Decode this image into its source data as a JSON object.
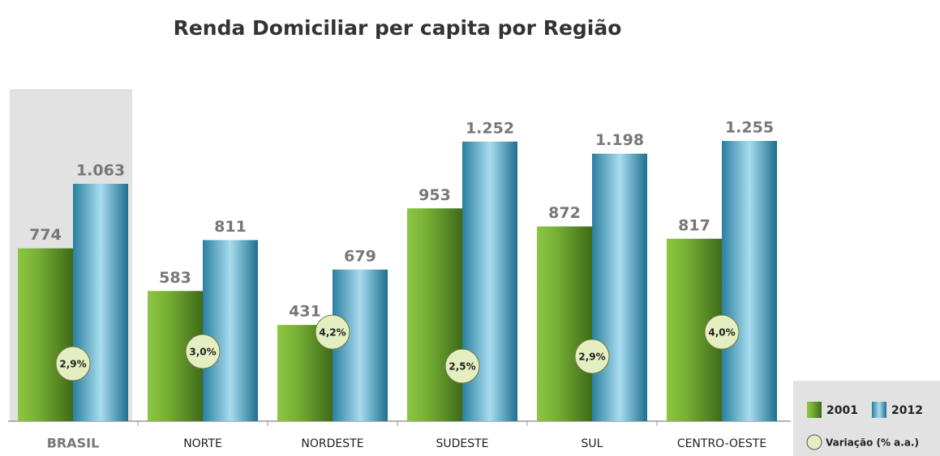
{
  "chart_data": {
    "type": "bar",
    "title": "Renda Domiciliar per capita por Região",
    "categories": [
      "BRASIL",
      "NORTE",
      "NORDESTE",
      "SUDESTE",
      "SUL",
      "CENTRO-OESTE"
    ],
    "series": [
      {
        "name": "2001",
        "color": "#6a9e2c",
        "values": [
          774,
          583,
          431,
          953,
          872,
          817
        ],
        "value_labels": [
          "774",
          "583",
          "431",
          "953",
          "872",
          "817"
        ]
      },
      {
        "name": "2012",
        "color": "#2f8fb0",
        "values": [
          1063,
          811,
          679,
          1252,
          1198,
          1255
        ],
        "value_labels": [
          "1.063",
          "811",
          "679",
          "1.252",
          "1.198",
          "1.255"
        ]
      }
    ],
    "variation": {
      "name": "Variação (% a.a.)",
      "values": [
        2.9,
        3.0,
        4.2,
        2.5,
        2.9,
        4.0
      ],
      "value_labels": [
        "2,9%",
        "3,0%",
        "4,2%",
        "2,5%",
        "2,9%",
        "4,0%"
      ]
    }
  }
}
